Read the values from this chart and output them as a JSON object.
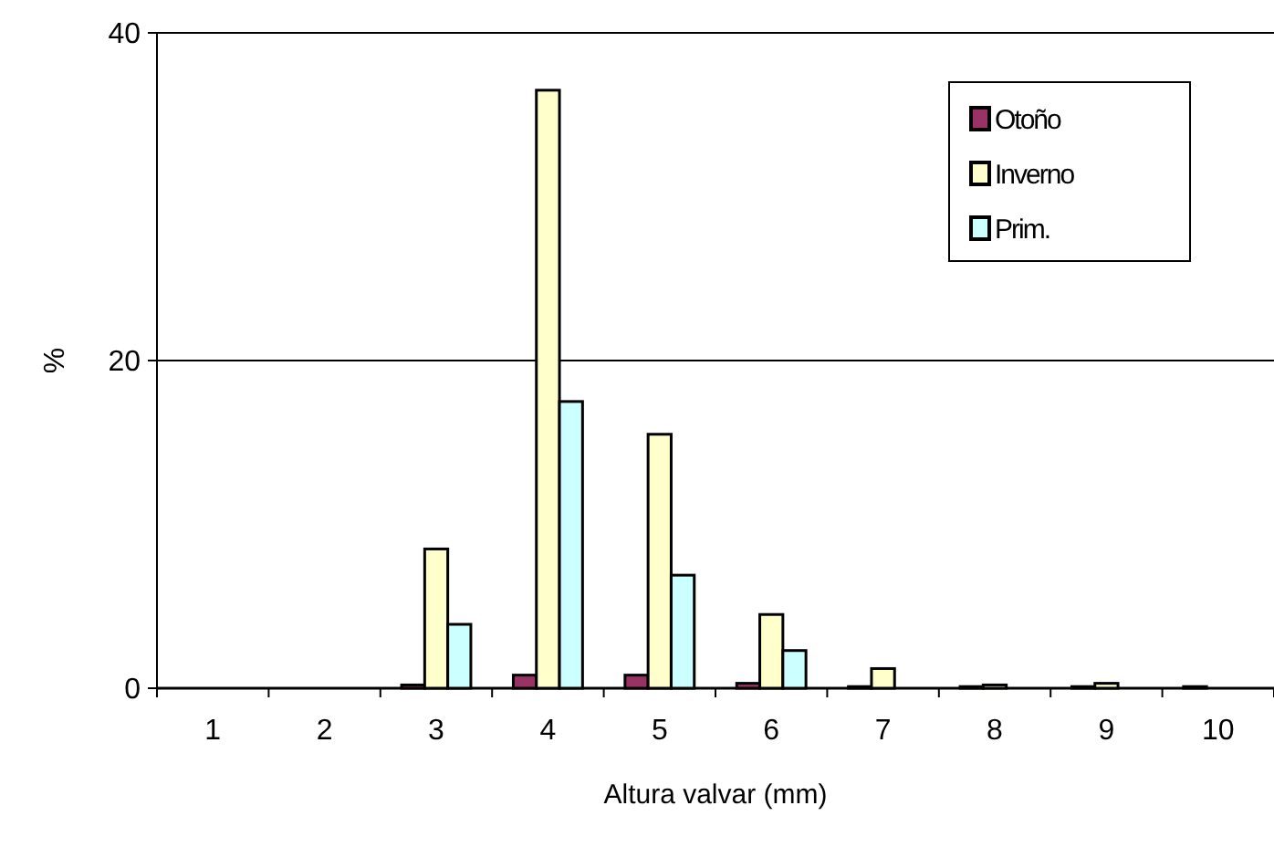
{
  "chart_data": {
    "type": "bar",
    "xlabel": "Altura valvar (mm)",
    "ylabel": "%",
    "categories": [
      "1",
      "2",
      "3",
      "4",
      "5",
      "6",
      "7",
      "8",
      "9",
      "10"
    ],
    "series": [
      {
        "name": "Otoño",
        "color": "#993366",
        "values": [
          0,
          0,
          0.2,
          0.8,
          0.8,
          0.3,
          0.1,
          0.1,
          0.1,
          0.1
        ]
      },
      {
        "name": "Inverno",
        "color": "#ffffcc",
        "values": [
          0,
          0,
          8.5,
          36.5,
          15.5,
          4.5,
          1.2,
          0.2,
          0.3,
          0
        ]
      },
      {
        "name": "Prim.",
        "color": "#ccffff",
        "values": [
          0,
          0,
          3.9,
          17.5,
          6.9,
          2.3,
          0,
          0,
          0,
          0
        ]
      }
    ],
    "ylim": [
      0,
      40
    ],
    "yticks": [
      0,
      20,
      40
    ],
    "grid": "y",
    "legend": "top right"
  }
}
